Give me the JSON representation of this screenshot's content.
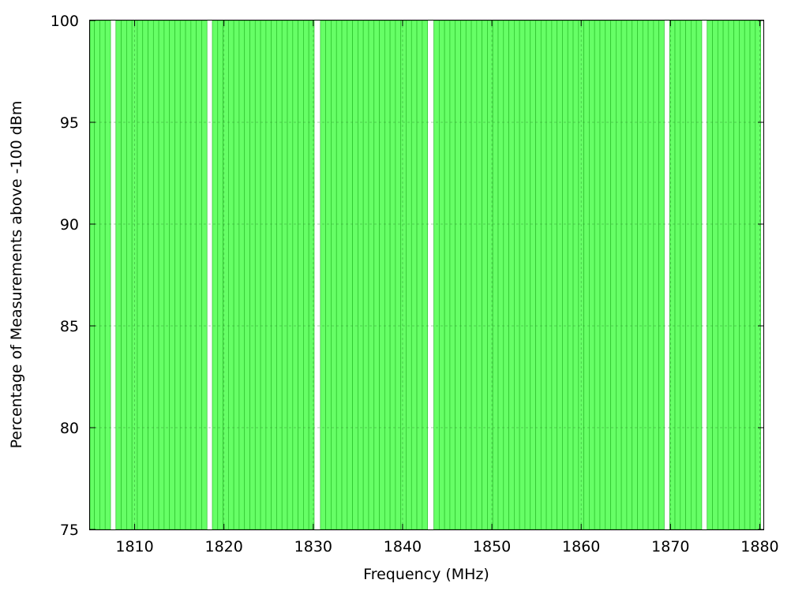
{
  "chart_data": {
    "type": "bar",
    "title": "",
    "xlabel": "Frequency (MHz)",
    "ylabel": "Percentage of Measurements above -100 dBm",
    "xlim": [
      1805,
      1880.4
    ],
    "ylim": [
      75,
      100
    ],
    "x_ticks": [
      1810,
      1820,
      1830,
      1840,
      1850,
      1860,
      1870,
      1880
    ],
    "y_ticks": [
      75,
      80,
      85,
      90,
      95,
      100
    ],
    "grid": true,
    "legend": "none",
    "bar_color": "#66ff66",
    "bar_edge_color": "#2bbf2b",
    "series": [
      {
        "values": [
          {
            "x": 1805.2,
            "y": 100
          },
          {
            "x": 1805.8,
            "y": 100
          },
          {
            "x": 1806.4,
            "y": 100
          },
          {
            "x": 1807.0,
            "y": 100
          },
          {
            "x": 1808.2,
            "y": 100
          },
          {
            "x": 1808.8,
            "y": 100
          },
          {
            "x": 1809.4,
            "y": 100
          },
          {
            "x": 1810.0,
            "y": 100
          },
          {
            "x": 1810.6,
            "y": 100
          },
          {
            "x": 1811.2,
            "y": 100
          },
          {
            "x": 1811.8,
            "y": 100
          },
          {
            "x": 1812.4,
            "y": 100
          },
          {
            "x": 1813.0,
            "y": 100
          },
          {
            "x": 1813.6,
            "y": 100
          },
          {
            "x": 1814.2,
            "y": 100
          },
          {
            "x": 1814.8,
            "y": 100
          },
          {
            "x": 1815.4,
            "y": 100
          },
          {
            "x": 1816.0,
            "y": 100
          },
          {
            "x": 1816.6,
            "y": 100
          },
          {
            "x": 1817.2,
            "y": 100
          },
          {
            "x": 1817.8,
            "y": 100
          },
          {
            "x": 1819.0,
            "y": 100
          },
          {
            "x": 1819.6,
            "y": 100
          },
          {
            "x": 1820.2,
            "y": 100
          },
          {
            "x": 1820.8,
            "y": 100
          },
          {
            "x": 1821.4,
            "y": 100
          },
          {
            "x": 1822.0,
            "y": 100
          },
          {
            "x": 1822.6,
            "y": 100
          },
          {
            "x": 1823.2,
            "y": 100
          },
          {
            "x": 1823.8,
            "y": 100
          },
          {
            "x": 1824.4,
            "y": 100
          },
          {
            "x": 1825.0,
            "y": 100
          },
          {
            "x": 1825.6,
            "y": 100
          },
          {
            "x": 1826.2,
            "y": 100
          },
          {
            "x": 1826.8,
            "y": 100
          },
          {
            "x": 1827.4,
            "y": 100
          },
          {
            "x": 1828.0,
            "y": 100
          },
          {
            "x": 1828.6,
            "y": 100
          },
          {
            "x": 1829.2,
            "y": 100
          },
          {
            "x": 1829.8,
            "y": 100
          },
          {
            "x": 1831.1,
            "y": 100
          },
          {
            "x": 1831.7,
            "y": 100
          },
          {
            "x": 1832.3,
            "y": 100
          },
          {
            "x": 1832.9,
            "y": 100
          },
          {
            "x": 1833.5,
            "y": 100
          },
          {
            "x": 1834.1,
            "y": 100
          },
          {
            "x": 1834.7,
            "y": 100
          },
          {
            "x": 1835.3,
            "y": 100
          },
          {
            "x": 1835.9,
            "y": 100
          },
          {
            "x": 1836.5,
            "y": 100
          },
          {
            "x": 1837.1,
            "y": 100
          },
          {
            "x": 1837.7,
            "y": 100
          },
          {
            "x": 1838.3,
            "y": 100
          },
          {
            "x": 1838.9,
            "y": 100
          },
          {
            "x": 1839.5,
            "y": 100
          },
          {
            "x": 1840.1,
            "y": 100
          },
          {
            "x": 1840.7,
            "y": 100
          },
          {
            "x": 1841.3,
            "y": 100
          },
          {
            "x": 1841.9,
            "y": 100
          },
          {
            "x": 1842.5,
            "y": 100
          },
          {
            "x": 1843.8,
            "y": 100
          },
          {
            "x": 1844.4,
            "y": 100
          },
          {
            "x": 1845.0,
            "y": 100
          },
          {
            "x": 1845.6,
            "y": 100
          },
          {
            "x": 1846.2,
            "y": 100
          },
          {
            "x": 1846.8,
            "y": 100
          },
          {
            "x": 1847.4,
            "y": 100
          },
          {
            "x": 1848.0,
            "y": 100
          },
          {
            "x": 1848.6,
            "y": 100
          },
          {
            "x": 1849.2,
            "y": 100
          },
          {
            "x": 1849.8,
            "y": 100
          },
          {
            "x": 1850.4,
            "y": 100
          },
          {
            "x": 1851.0,
            "y": 100
          },
          {
            "x": 1851.6,
            "y": 100
          },
          {
            "x": 1852.2,
            "y": 100
          },
          {
            "x": 1852.8,
            "y": 100
          },
          {
            "x": 1853.4,
            "y": 100
          },
          {
            "x": 1854.0,
            "y": 100
          },
          {
            "x": 1854.6,
            "y": 100
          },
          {
            "x": 1855.2,
            "y": 100
          },
          {
            "x": 1855.8,
            "y": 100
          },
          {
            "x": 1856.4,
            "y": 100
          },
          {
            "x": 1857.0,
            "y": 100
          },
          {
            "x": 1857.6,
            "y": 100
          },
          {
            "x": 1858.2,
            "y": 100
          },
          {
            "x": 1858.8,
            "y": 100
          },
          {
            "x": 1859.4,
            "y": 100
          },
          {
            "x": 1860.0,
            "y": 100
          },
          {
            "x": 1860.6,
            "y": 100
          },
          {
            "x": 1861.2,
            "y": 100
          },
          {
            "x": 1861.8,
            "y": 100
          },
          {
            "x": 1862.4,
            "y": 100
          },
          {
            "x": 1863.0,
            "y": 100
          },
          {
            "x": 1863.6,
            "y": 100
          },
          {
            "x": 1864.2,
            "y": 100
          },
          {
            "x": 1864.8,
            "y": 100
          },
          {
            "x": 1865.4,
            "y": 100
          },
          {
            "x": 1866.0,
            "y": 100
          },
          {
            "x": 1866.6,
            "y": 100
          },
          {
            "x": 1867.2,
            "y": 100
          },
          {
            "x": 1867.8,
            "y": 100
          },
          {
            "x": 1868.4,
            "y": 100
          },
          {
            "x": 1869.0,
            "y": 100
          },
          {
            "x": 1870.2,
            "y": 100
          },
          {
            "x": 1870.8,
            "y": 100
          },
          {
            "x": 1871.4,
            "y": 100
          },
          {
            "x": 1872.0,
            "y": 100
          },
          {
            "x": 1872.6,
            "y": 100
          },
          {
            "x": 1873.2,
            "y": 100
          },
          {
            "x": 1874.4,
            "y": 100
          },
          {
            "x": 1875.0,
            "y": 100
          },
          {
            "x": 1875.6,
            "y": 100
          },
          {
            "x": 1876.2,
            "y": 100
          },
          {
            "x": 1876.8,
            "y": 100
          },
          {
            "x": 1877.4,
            "y": 100
          },
          {
            "x": 1878.0,
            "y": 100
          },
          {
            "x": 1878.6,
            "y": 100
          },
          {
            "x": 1879.2,
            "y": 100
          },
          {
            "x": 1879.8,
            "y": 100
          }
        ]
      }
    ]
  }
}
